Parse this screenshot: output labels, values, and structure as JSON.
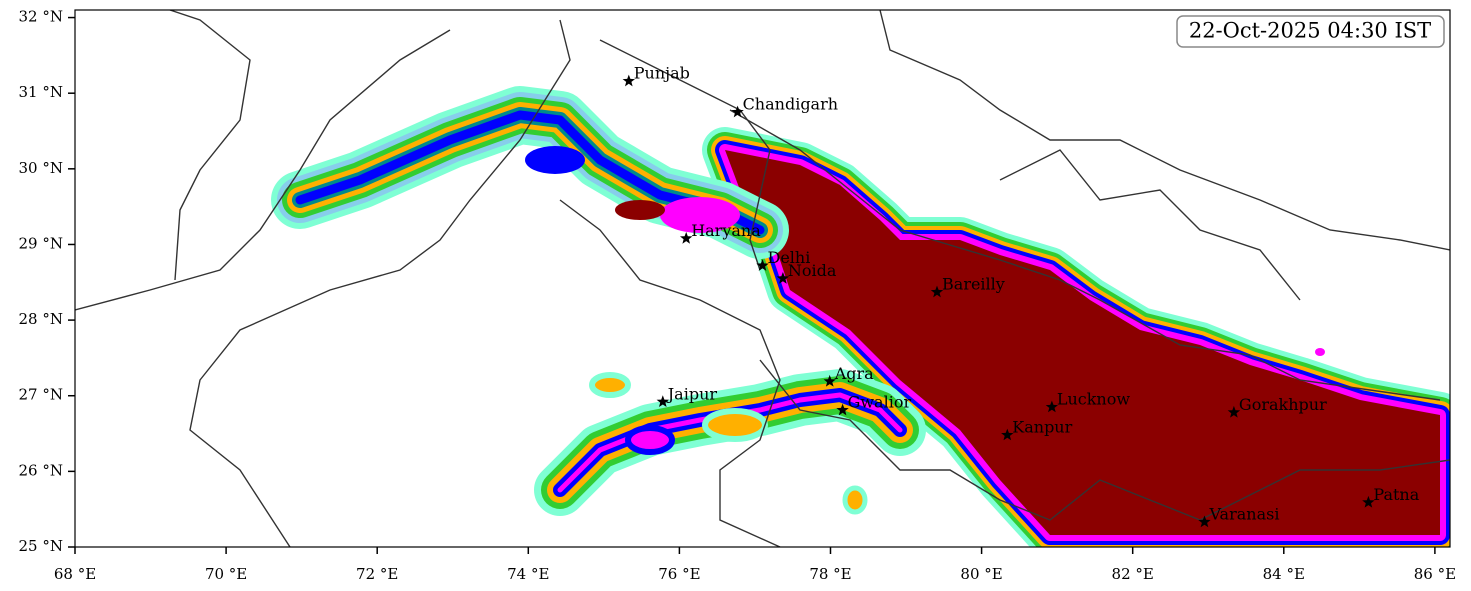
{
  "map": {
    "timestamp": "22-Oct-2025 04:30 IST",
    "xlim": [
      68,
      86.2
    ],
    "ylim": [
      25,
      32.1
    ],
    "xticks": [
      {
        "value": 68,
        "label": "68 °E"
      },
      {
        "value": 70,
        "label": "70 °E"
      },
      {
        "value": 72,
        "label": "72 °E"
      },
      {
        "value": 74,
        "label": "74 °E"
      },
      {
        "value": 76,
        "label": "76 °E"
      },
      {
        "value": 78,
        "label": "78 °E"
      },
      {
        "value": 80,
        "label": "80 °E"
      },
      {
        "value": 82,
        "label": "82 °E"
      },
      {
        "value": 84,
        "label": "84 °E"
      },
      {
        "value": 86,
        "label": "86 °E"
      }
    ],
    "yticks": [
      {
        "value": 25,
        "label": "25 °N"
      },
      {
        "value": 26,
        "label": "26 °N"
      },
      {
        "value": 27,
        "label": "27 °N"
      },
      {
        "value": 28,
        "label": "28 °N"
      },
      {
        "value": 29,
        "label": "29 °N"
      },
      {
        "value": 30,
        "label": "30 °N"
      },
      {
        "value": 31,
        "label": "31 °N"
      },
      {
        "value": 32,
        "label": "32 °N"
      }
    ],
    "cities": [
      {
        "name": "Punjab",
        "lon": 75.33,
        "lat": 31.16
      },
      {
        "name": "Chandigarh",
        "lon": 76.77,
        "lat": 30.75
      },
      {
        "name": "Haryana",
        "lon": 76.09,
        "lat": 29.08
      },
      {
        "name": "Delhi",
        "lon": 77.1,
        "lat": 28.72
      },
      {
        "name": "Noida",
        "lon": 77.37,
        "lat": 28.55
      },
      {
        "name": "Bareilly",
        "lon": 79.41,
        "lat": 28.37
      },
      {
        "name": "Agra",
        "lon": 77.99,
        "lat": 27.19
      },
      {
        "name": "Gwalior",
        "lon": 78.16,
        "lat": 26.81
      },
      {
        "name": "Jaipur",
        "lon": 75.78,
        "lat": 26.92
      },
      {
        "name": "Lucknow",
        "lon": 80.93,
        "lat": 26.85
      },
      {
        "name": "Kanpur",
        "lon": 80.34,
        "lat": 26.48
      },
      {
        "name": "Gorakhpur",
        "lon": 83.34,
        "lat": 26.78
      },
      {
        "name": "Varanasi",
        "lon": 82.95,
        "lat": 25.33
      },
      {
        "name": "Patna",
        "lon": 85.12,
        "lat": 25.59
      }
    ]
  }
}
